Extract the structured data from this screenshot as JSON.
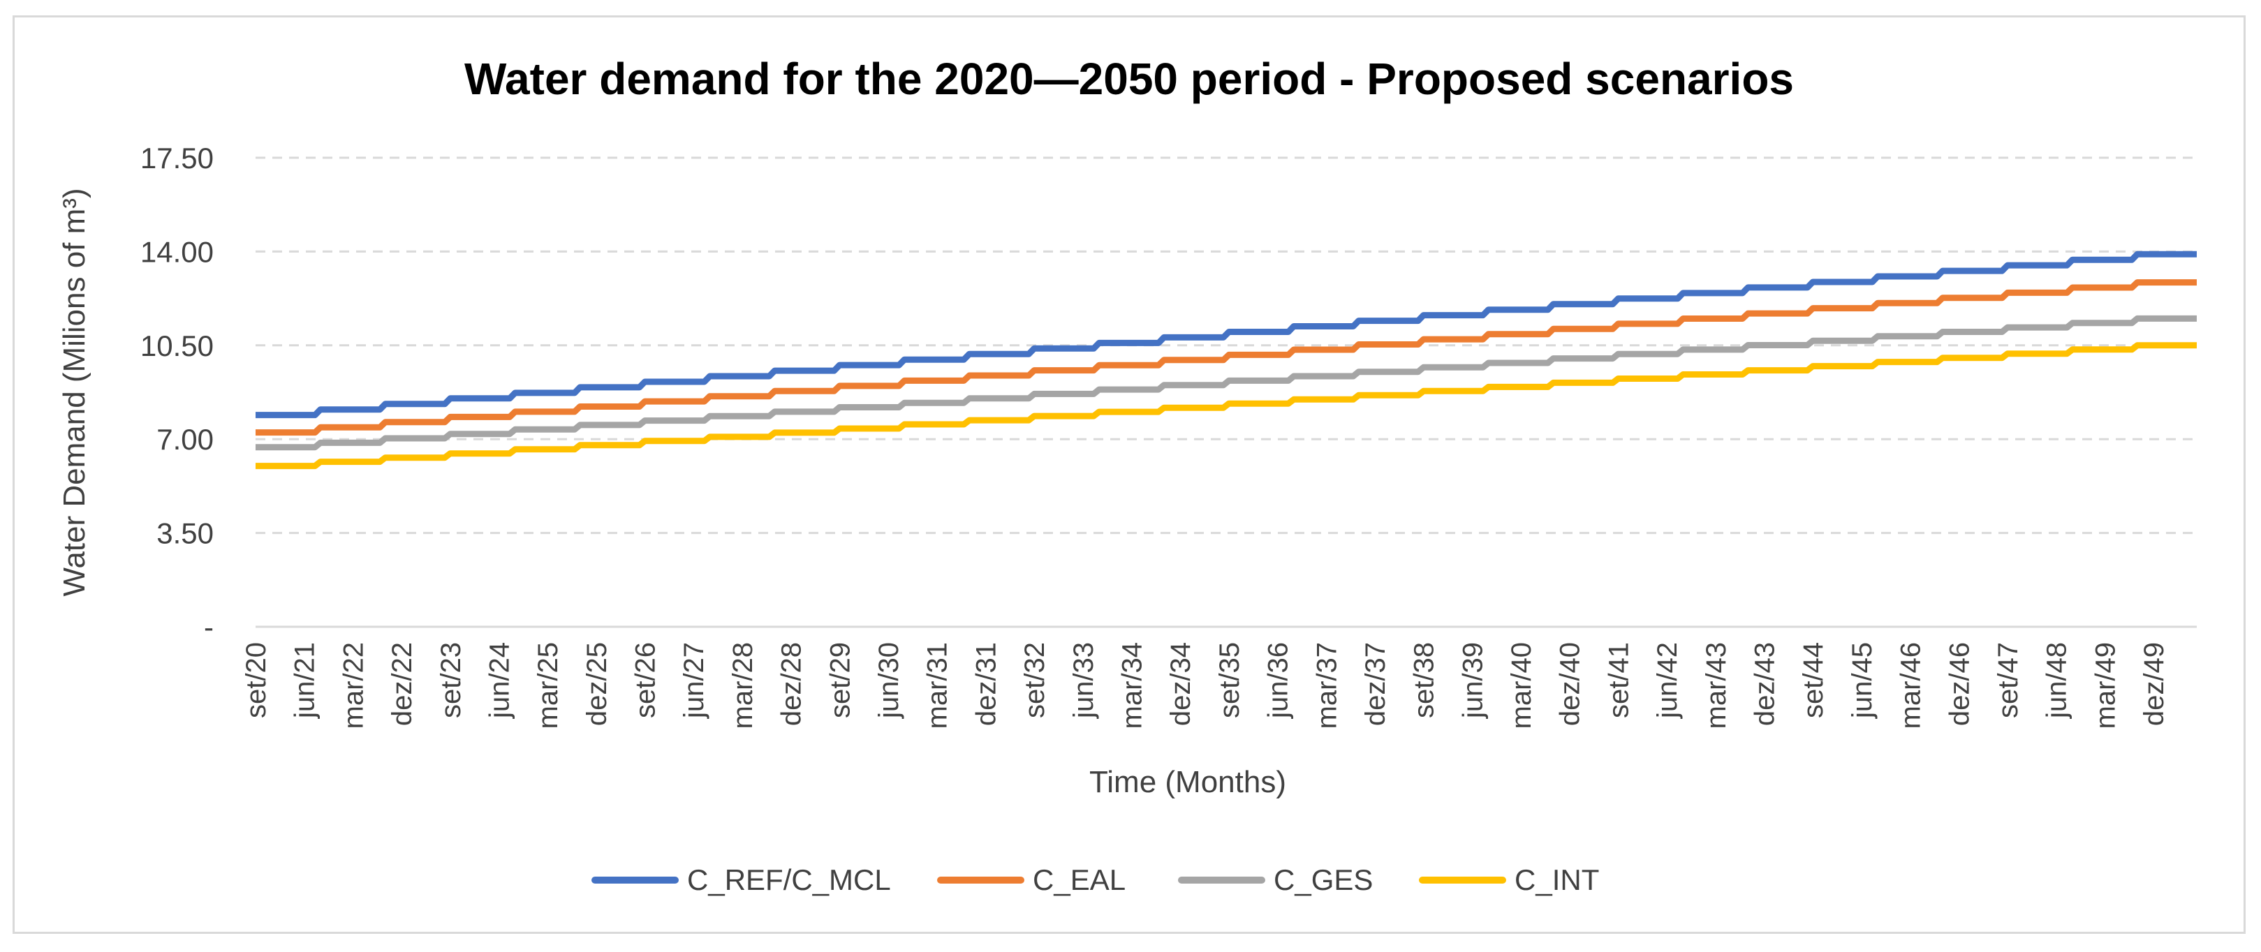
{
  "chart_data": {
    "type": "line",
    "title": "Water demand for the 2020—2050 period - Proposed scenarios",
    "xlabel": "Time (Months)",
    "ylabel": "Water Demand (Milions of m³)",
    "ylim": [
      0,
      17.5
    ],
    "yticks": [
      "-",
      "3.50",
      "7.00",
      "10.50",
      "14.00",
      "17.50"
    ],
    "grid": true,
    "legend_position": "bottom",
    "x_tick_labels": [
      "set/20",
      "jun/21",
      "mar/22",
      "dez/22",
      "set/23",
      "jun/24",
      "mar/25",
      "dez/25",
      "set/26",
      "jun/27",
      "mar/28",
      "dez/28",
      "set/29",
      "jun/30",
      "mar/31",
      "dez/31",
      "set/32",
      "jun/33",
      "mar/34",
      "dez/34",
      "set/35",
      "jun/36",
      "mar/37",
      "dez/37",
      "set/38",
      "jun/39",
      "mar/40",
      "dez/40",
      "set/41",
      "jun/42",
      "mar/43",
      "dez/43",
      "set/44",
      "jun/45",
      "mar/46",
      "dez/46",
      "set/47",
      "jun/48",
      "mar/49",
      "dez/49"
    ],
    "months_total": 360,
    "step_every_months": 12,
    "series": [
      {
        "name": "C_REF/C_MCL",
        "color": "#4472C4",
        "start": 7.9,
        "end": 13.9
      },
      {
        "name": "C_EAL",
        "color": "#ED7D31",
        "start": 7.25,
        "end": 12.85
      },
      {
        "name": "C_GES",
        "color": "#A5A5A5",
        "start": 6.7,
        "end": 11.5
      },
      {
        "name": "C_INT",
        "color": "#FFC000",
        "start": 6.0,
        "end": 10.5
      }
    ]
  }
}
